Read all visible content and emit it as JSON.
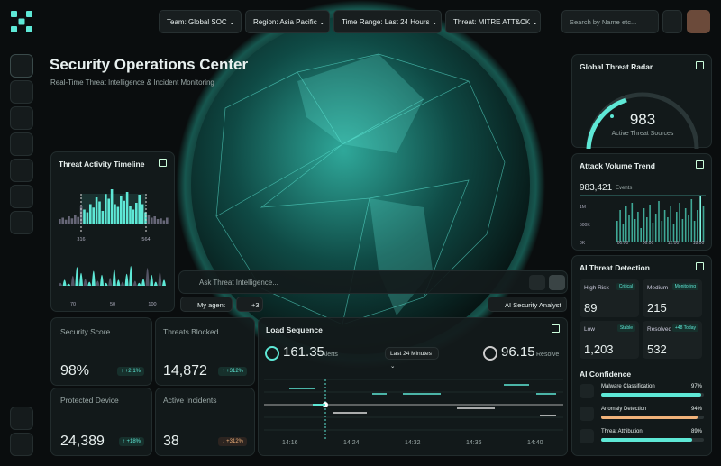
{
  "header": {
    "filters": [
      "Team: Global SOC",
      "Region: Asia Pacific",
      "Time Range: Last 24 Hours",
      "Threat: MITRE ATT&CK"
    ],
    "search_placeholder": "Search by Name etc..."
  },
  "hero": {
    "title": "Security Operations Center",
    "subtitle": "Real-Time Threat Intelligence & Incident Monitoring"
  },
  "threat_activity_timeline": {
    "title": "Threat Activity Timeline",
    "top_bars": [
      8,
      10,
      7,
      12,
      9,
      14,
      11,
      28,
      22,
      18,
      30,
      25,
      40,
      34,
      20,
      45,
      38,
      52,
      30,
      26,
      42,
      35,
      48,
      28,
      22,
      32,
      44,
      30,
      18,
      14,
      10,
      12,
      8,
      9,
      6,
      10
    ],
    "top_labels": [
      "316",
      "564"
    ],
    "bottom_bars": [
      6,
      12,
      4,
      20,
      38,
      26,
      14,
      8,
      30,
      10,
      22,
      6,
      16,
      34,
      12,
      8,
      24,
      40,
      10,
      6,
      14,
      36,
      22,
      8,
      28,
      12
    ],
    "bottom_labels": [
      "70",
      "50",
      "100"
    ]
  },
  "assistant": {
    "placeholder": "Ask Threat Intelligence...",
    "agent": "My agent",
    "extra": "+3",
    "mode": "AI Security Analyst"
  },
  "stats": [
    {
      "label": "Security Score",
      "value": "98%",
      "change": "↑ +2.1%"
    },
    {
      "label": "Threats Blocked",
      "value": "14,872",
      "change": "↑ +312%"
    },
    {
      "label": "Protected Device",
      "value": "24,389",
      "change": "↑ +18%"
    },
    {
      "label": "Active Incidents",
      "value": "38",
      "change": "↓ +312%"
    }
  ],
  "load_sequence": {
    "title": "Load Sequence",
    "alerts_value": "161.35",
    "alerts_label": "Alerts",
    "range": "Last 24 Minutes",
    "resolve_value": "96.15",
    "resolve_label": "Resolve",
    "times": [
      "14:16",
      "14:24",
      "14:32",
      "14:36",
      "14:40"
    ]
  },
  "global_threat_radar": {
    "title": "Global Threat Radar",
    "value": "983",
    "label": "Active Threat Sources"
  },
  "attack_volume_trend": {
    "title": "Attack Volume Trend",
    "total": "983,421",
    "unit": "Events",
    "ylim": [
      0,
      1500000
    ],
    "yticks": [
      {
        "value": 1000000,
        "label": "1M"
      },
      {
        "value": 500000,
        "label": "500K"
      },
      {
        "value": 0,
        "label": "0K"
      }
    ],
    "x_labels": [
      "00:00",
      "06:00",
      "12:00",
      "18:00",
      "24:00"
    ],
    "bars": [
      600000,
      900000,
      500000,
      1000000,
      750000,
      1100000,
      650000,
      850000,
      400000,
      950000,
      700000,
      1050000,
      550000,
      800000,
      1150000,
      600000,
      900000,
      700000,
      1000000,
      500000,
      850000,
      1100000,
      650000,
      950000,
      750000,
      1200000,
      600000,
      900000,
      1300000,
      1000000
    ]
  },
  "ai_threat_detection": {
    "title": "AI Threat Detection",
    "cells": [
      {
        "label": "High Risk",
        "badge": "Critical",
        "value": "89"
      },
      {
        "label": "Medium",
        "badge": "Monitoring",
        "value": "215"
      },
      {
        "label": "Low",
        "badge": "Stable",
        "value": "1,203"
      },
      {
        "label": "Resolved",
        "badge": "+48 Today",
        "value": "532"
      }
    ]
  },
  "ai_confidence": {
    "title": "AI Confidence",
    "items": [
      {
        "label": "Malware Classification",
        "value": 97,
        "value_label": "97%",
        "color": "#5ee8d6"
      },
      {
        "label": "Anomaly Detection",
        "value": 94,
        "value_label": "94%",
        "color": "#f0b27a"
      },
      {
        "label": "Threat Attribution",
        "value": 89,
        "value_label": "89%",
        "color": "#5ee8d6"
      }
    ]
  }
}
